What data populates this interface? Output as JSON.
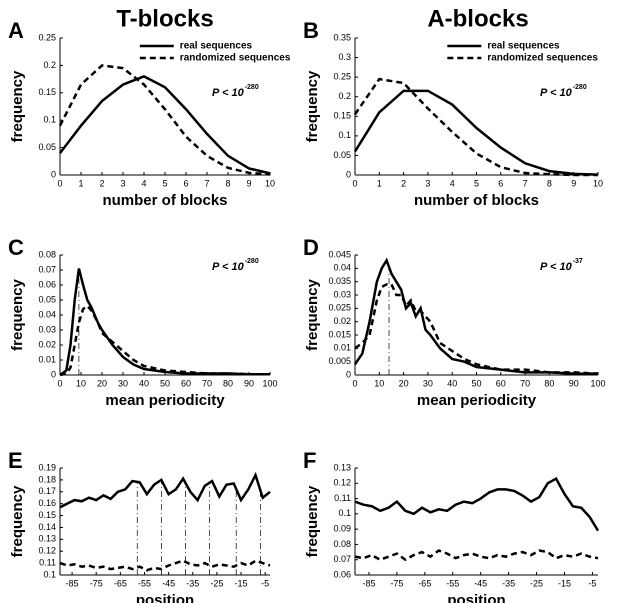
{
  "columns": [
    "T-blocks",
    "A-blocks"
  ],
  "chart_data": [
    {
      "type": "line",
      "panel": "A",
      "xlabel": "number of blocks",
      "ylabel": "frequency",
      "legend": true,
      "annotation": {
        "text": "P < 10",
        "exponent": "-280"
      },
      "x": [
        0,
        1,
        2,
        3,
        4,
        5,
        6,
        7,
        8,
        9,
        10
      ],
      "series": [
        {
          "name": "real sequences",
          "color": "#000000",
          "dash": false,
          "values": [
            0.04,
            0.09,
            0.135,
            0.165,
            0.18,
            0.16,
            0.12,
            0.075,
            0.035,
            0.012,
            0.003
          ]
        },
        {
          "name": "randomized sequences",
          "color": "#000000",
          "dash": true,
          "values": [
            0.09,
            0.165,
            0.2,
            0.195,
            0.165,
            0.12,
            0.07,
            0.035,
            0.013,
            0.004,
            0.001
          ]
        }
      ],
      "xlim": [
        0,
        10
      ],
      "xticks": [
        0,
        1,
        2,
        3,
        4,
        5,
        6,
        7,
        8,
        9,
        10
      ],
      "ylim": [
        0,
        0.25
      ],
      "yticks": [
        0,
        0.05,
        0.1,
        0.15,
        0.2,
        0.25
      ]
    },
    {
      "type": "line",
      "panel": "B",
      "xlabel": "number of blocks",
      "ylabel": "frequency",
      "legend": true,
      "annotation": {
        "text": "P < 10",
        "exponent": "-280"
      },
      "x": [
        0,
        1,
        2,
        3,
        4,
        5,
        6,
        7,
        8,
        9,
        10
      ],
      "series": [
        {
          "name": "real sequences",
          "color": "#000000",
          "dash": false,
          "values": [
            0.06,
            0.16,
            0.215,
            0.215,
            0.18,
            0.12,
            0.07,
            0.03,
            0.01,
            0.003,
            0.001
          ]
        },
        {
          "name": "randomized sequences",
          "color": "#000000",
          "dash": true,
          "values": [
            0.155,
            0.245,
            0.235,
            0.17,
            0.11,
            0.055,
            0.02,
            0.005,
            0.002,
            0,
            0
          ]
        }
      ],
      "xlim": [
        0,
        10
      ],
      "xticks": [
        0,
        1,
        2,
        3,
        4,
        5,
        6,
        7,
        8,
        9,
        10
      ],
      "ylim": [
        0,
        0.35
      ],
      "yticks": [
        0,
        0.05,
        0.1,
        0.15,
        0.2,
        0.25,
        0.3,
        0.35
      ]
    },
    {
      "type": "line",
      "panel": "C",
      "xlabel": "mean periodicity",
      "ylabel": "frequency",
      "annotation": {
        "text": "P < 10",
        "exponent": "-280"
      },
      "x": [
        0,
        3,
        5,
        7,
        9,
        11,
        13,
        15,
        18,
        20,
        25,
        30,
        35,
        40,
        50,
        60,
        70,
        80,
        90,
        100
      ],
      "series": [
        {
          "color": "#000000",
          "dash": false,
          "values": [
            0,
            0.003,
            0.02,
            0.05,
            0.071,
            0.06,
            0.05,
            0.045,
            0.035,
            0.03,
            0.02,
            0.012,
            0.007,
            0.004,
            0.002,
            0.001,
            0.001,
            0.001,
            0.0005,
            0.0005
          ]
        },
        {
          "color": "#000000",
          "dash": true,
          "values": [
            0,
            0.001,
            0.005,
            0.02,
            0.035,
            0.044,
            0.046,
            0.043,
            0.035,
            0.028,
            0.022,
            0.016,
            0.01,
            0.006,
            0.003,
            0.002,
            0.001,
            0.001,
            0.0005,
            0.0005
          ]
        }
      ],
      "vlines": [
        9
      ],
      "xlim": [
        0,
        100
      ],
      "xticks": [
        0,
        10,
        20,
        30,
        40,
        50,
        60,
        70,
        80,
        90,
        100
      ],
      "ylim": [
        0,
        0.08
      ],
      "yticks": [
        0,
        0.01,
        0.02,
        0.03,
        0.04,
        0.05,
        0.06,
        0.07,
        0.08
      ]
    },
    {
      "type": "line",
      "panel": "D",
      "xlabel": "mean periodicity",
      "ylabel": "frequency",
      "annotation": {
        "text": "P < 10",
        "exponent": "-37"
      },
      "x": [
        0,
        3,
        6,
        9,
        11,
        13,
        15,
        17,
        19,
        21,
        23,
        25,
        27,
        29,
        31,
        35,
        40,
        45,
        50,
        60,
        70,
        80,
        90,
        100
      ],
      "series": [
        {
          "color": "#000000",
          "dash": false,
          "values": [
            0.004,
            0.008,
            0.02,
            0.035,
            0.04,
            0.043,
            0.038,
            0.035,
            0.032,
            0.025,
            0.027,
            0.022,
            0.025,
            0.017,
            0.015,
            0.01,
            0.006,
            0.005,
            0.003,
            0.002,
            0.001,
            0.001,
            0.0005,
            0.0005
          ]
        },
        {
          "color": "#000000",
          "dash": true,
          "values": [
            0.01,
            0.012,
            0.015,
            0.028,
            0.033,
            0.034,
            0.034,
            0.03,
            0.03,
            0.026,
            0.028,
            0.024,
            0.024,
            0.022,
            0.02,
            0.012,
            0.009,
            0.006,
            0.004,
            0.002,
            0.002,
            0.001,
            0.001,
            0.0005
          ]
        }
      ],
      "vlines": [
        14
      ],
      "xlim": [
        0,
        100
      ],
      "xticks": [
        0,
        10,
        20,
        30,
        40,
        50,
        60,
        70,
        80,
        90,
        100
      ],
      "ylim": [
        0,
        0.045
      ],
      "yticks": [
        0,
        0.005,
        0.01,
        0.015,
        0.02,
        0.025,
        0.03,
        0.035,
        0.04,
        0.045
      ]
    },
    {
      "type": "line",
      "panel": "E",
      "xlabel": "position",
      "ylabel": "frequency",
      "x": [
        -90,
        -87,
        -84,
        -81,
        -78,
        -75,
        -72,
        -69,
        -66,
        -63,
        -60,
        -57,
        -54,
        -51,
        -48,
        -45,
        -42,
        -39,
        -36,
        -33,
        -30,
        -27,
        -24,
        -21,
        -18,
        -15,
        -12,
        -9,
        -6,
        -3
      ],
      "series": [
        {
          "color": "#000000",
          "dash": false,
          "values": [
            0.157,
            0.16,
            0.163,
            0.162,
            0.165,
            0.163,
            0.167,
            0.164,
            0.17,
            0.172,
            0.179,
            0.178,
            0.168,
            0.176,
            0.18,
            0.168,
            0.172,
            0.181,
            0.17,
            0.163,
            0.175,
            0.179,
            0.166,
            0.176,
            0.177,
            0.163,
            0.172,
            0.184,
            0.165,
            0.17
          ]
        },
        {
          "color": "#000000",
          "dash": true,
          "values": [
            0.11,
            0.108,
            0.109,
            0.107,
            0.108,
            0.106,
            0.107,
            0.105,
            0.106,
            0.107,
            0.105,
            0.107,
            0.104,
            0.106,
            0.105,
            0.108,
            0.11,
            0.112,
            0.109,
            0.108,
            0.11,
            0.107,
            0.109,
            0.108,
            0.107,
            0.11,
            0.108,
            0.112,
            0.11,
            0.108
          ]
        }
      ],
      "vlines": [
        -58,
        -48,
        -38,
        -28,
        -17,
        -7
      ],
      "xlim": [
        -90,
        -3
      ],
      "xticks": [
        -85,
        -75,
        -65,
        -55,
        -45,
        -35,
        -25,
        -15,
        -5
      ],
      "ylim": [
        0.1,
        0.19
      ],
      "yticks": [
        0.1,
        0.11,
        0.12,
        0.13,
        0.14,
        0.15,
        0.16,
        0.17,
        0.18,
        0.19
      ]
    },
    {
      "type": "line",
      "panel": "F",
      "xlabel": "position",
      "ylabel": "frequency",
      "x": [
        -90,
        -87,
        -84,
        -81,
        -78,
        -75,
        -72,
        -69,
        -66,
        -63,
        -60,
        -57,
        -54,
        -51,
        -48,
        -45,
        -42,
        -39,
        -36,
        -33,
        -30,
        -27,
        -24,
        -21,
        -18,
        -15,
        -12,
        -9,
        -6,
        -3
      ],
      "series": [
        {
          "color": "#000000",
          "dash": false,
          "values": [
            0.108,
            0.106,
            0.105,
            0.102,
            0.104,
            0.108,
            0.102,
            0.1,
            0.104,
            0.101,
            0.103,
            0.102,
            0.106,
            0.108,
            0.107,
            0.11,
            0.114,
            0.116,
            0.116,
            0.115,
            0.112,
            0.108,
            0.111,
            0.12,
            0.123,
            0.113,
            0.105,
            0.104,
            0.098,
            0.089
          ]
        },
        {
          "color": "#000000",
          "dash": true,
          "values": [
            0.072,
            0.071,
            0.073,
            0.07,
            0.072,
            0.074,
            0.07,
            0.073,
            0.075,
            0.072,
            0.076,
            0.074,
            0.071,
            0.073,
            0.074,
            0.072,
            0.071,
            0.073,
            0.072,
            0.074,
            0.075,
            0.073,
            0.076,
            0.075,
            0.071,
            0.073,
            0.072,
            0.074,
            0.072,
            0.071
          ]
        }
      ],
      "xlim": [
        -90,
        -3
      ],
      "xticks": [
        -85,
        -75,
        -65,
        -55,
        -45,
        -35,
        -25,
        -15,
        -5
      ],
      "ylim": [
        0.06,
        0.13
      ],
      "yticks": [
        0.06,
        0.07,
        0.08,
        0.09,
        0.1,
        0.11,
        0.12,
        0.13
      ]
    }
  ]
}
